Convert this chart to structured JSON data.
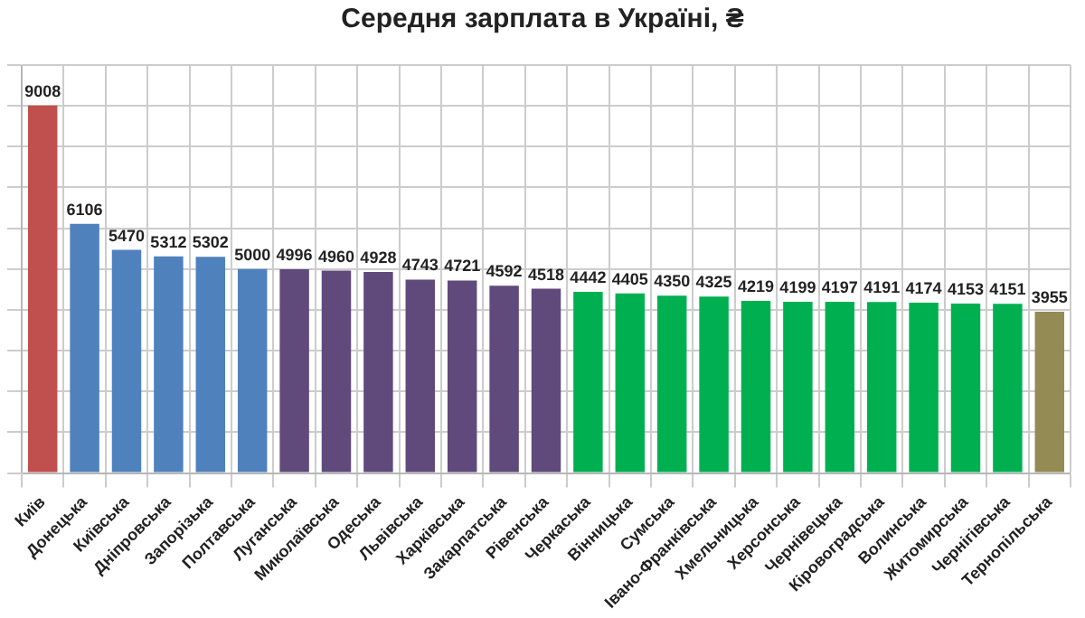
{
  "chart_data": {
    "type": "bar",
    "title": "Середня зарплата в Україні, ₴",
    "categories": [
      "Київ",
      "Донецька",
      "Київська",
      "Дніпровська",
      "Запорізька",
      "Полтавська",
      "Луганська",
      "Миколаївська",
      "Одеська",
      "Львівська",
      "Харківська",
      "Закарпатська",
      "Рівенська",
      "Черкаська",
      "Вінницька",
      "Сумська",
      "Івано-Франківська",
      "Хмельницька",
      "Херсонська",
      "Чернівецька",
      "Кіровоградська",
      "Волинська",
      "Житомирська",
      "Чернігівська",
      "Тернопільська"
    ],
    "values": [
      9008,
      6106,
      5470,
      5312,
      5302,
      5000,
      4996,
      4960,
      4928,
      4743,
      4721,
      4592,
      4518,
      4442,
      4405,
      4350,
      4325,
      4219,
      4199,
      4197,
      4191,
      4174,
      4153,
      4151,
      3955
    ],
    "colors": [
      "#c0504d",
      "#4f81bd",
      "#4f81bd",
      "#4f81bd",
      "#4f81bd",
      "#4f81bd",
      "#604a7b",
      "#604a7b",
      "#604a7b",
      "#604a7b",
      "#604a7b",
      "#604a7b",
      "#604a7b",
      "#00b050",
      "#00b050",
      "#00b050",
      "#00b050",
      "#00b050",
      "#00b050",
      "#00b050",
      "#00b050",
      "#00b050",
      "#00b050",
      "#00b050",
      "#948a54"
    ],
    "ylim": [
      0,
      10000
    ],
    "yticks": [
      {
        "value": 0,
        "label": null
      },
      {
        "value": 1000,
        "label": null
      },
      {
        "value": 2000,
        "label": null
      },
      {
        "value": 3000,
        "label": null
      },
      {
        "value": 4000,
        "label": null
      },
      {
        "value": 5000,
        "label": null
      },
      {
        "value": 6000,
        "label": null
      },
      {
        "value": 7000,
        "label": null
      },
      {
        "value": 8000,
        "label": null
      },
      {
        "value": 9000,
        "label": null
      },
      {
        "value": 10000,
        "label": null
      }
    ],
    "tick_labels": "x",
    "grid": true,
    "legend": false,
    "data_labels": true
  }
}
